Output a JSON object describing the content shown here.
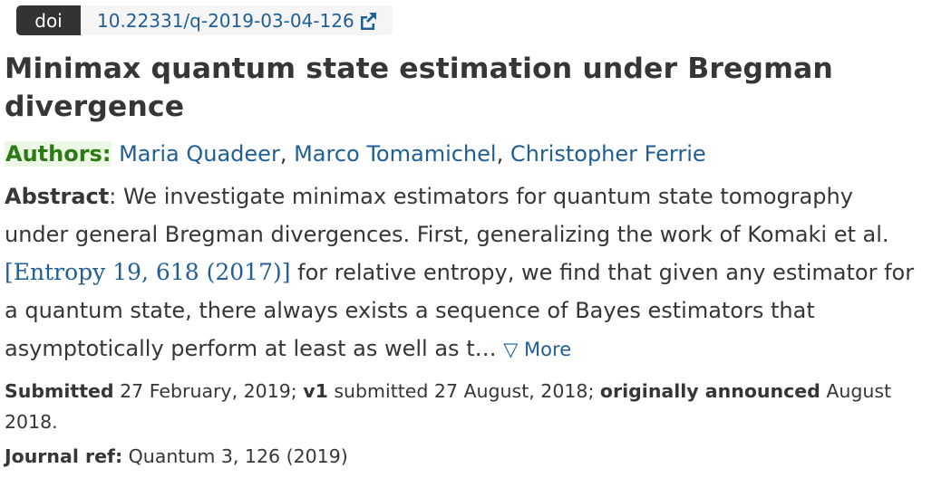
{
  "doi": {
    "label": "doi",
    "value": "10.22331/q-2019-03-04-126",
    "icon": "external-link-icon"
  },
  "title": "Minimax quantum state estimation under Bregman divergence",
  "authors": {
    "label": "Authors:",
    "names": [
      "Maria Quadeer",
      "Marco Tomamichel",
      "Christopher Ferrie"
    ],
    "separator": ", "
  },
  "abstract": {
    "label": "Abstract",
    "colon": ": ",
    "text_before_ref": "We investigate minimax estimators for quantum state tomography under general Bregman divergences. First, generalizing the work of Komaki et al. ",
    "ref": "[Entropy 19, 618 (2017)]",
    "text_after_ref": " for relative entropy, we find that given any estimator for a quantum state, there always exists a sequence of Bayes estimators that asymptotically perform at least as well as t… ",
    "more_label": "▽ More"
  },
  "submitted": {
    "submitted_label": "Submitted",
    "submitted_date": " 27 February, 2019; ",
    "v1_label": "v1",
    "v1_text": " submitted 27 August, 2018; ",
    "announced_label": "originally announced",
    "announced_date": " August 2018."
  },
  "journal": {
    "label": "Journal ref:",
    "value": " Quantum 3, 126 (2019)"
  },
  "colors": {
    "link": "#1f5e96",
    "authors_label_text": "#2b7a13",
    "authors_label_bg": "#ecf7e6",
    "doi_tag_bg": "#333333",
    "doi_value_bg": "#f5f5f5",
    "body_text": "#363636"
  }
}
